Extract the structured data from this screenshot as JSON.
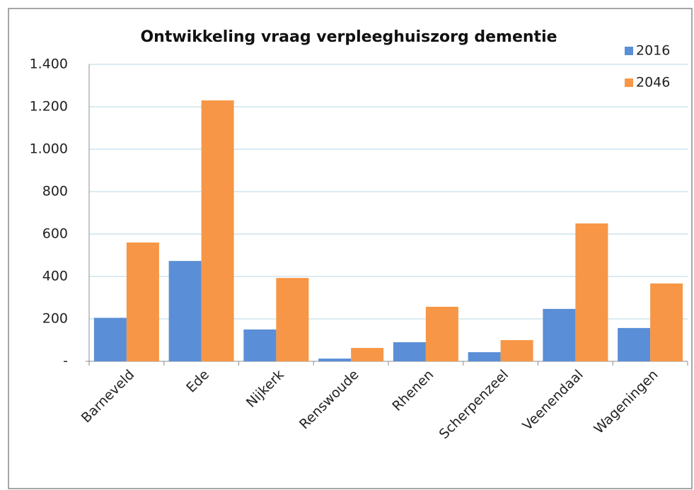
{
  "chart_data": {
    "type": "bar",
    "title": "Ontwikkeling vraag verpleeghuiszorg dementie",
    "categories": [
      "Barneveld",
      "Ede",
      "Nijkerk",
      "Renswoude",
      "Rhenen",
      "Scherpenzeel",
      "Veenendaal",
      "Wageningen"
    ],
    "series": [
      {
        "name": "2016",
        "color": "#5a8ed6",
        "values": [
          205,
          473,
          150,
          13,
          90,
          43,
          247,
          157
        ]
      },
      {
        "name": "2046",
        "color": "#f79646",
        "values": [
          560,
          1230,
          393,
          63,
          257,
          100,
          650,
          367
        ]
      }
    ],
    "ylim": [
      0,
      1400
    ],
    "yticks": [
      {
        "value": 0,
        "label": "-"
      },
      200,
      400,
      600,
      800,
      {
        "value": 1000,
        "label": "1.000"
      },
      {
        "value": 1200,
        "label": "1.200"
      },
      {
        "value": 1400,
        "label": "1.400"
      }
    ],
    "grid": true,
    "legend": "top-right"
  }
}
